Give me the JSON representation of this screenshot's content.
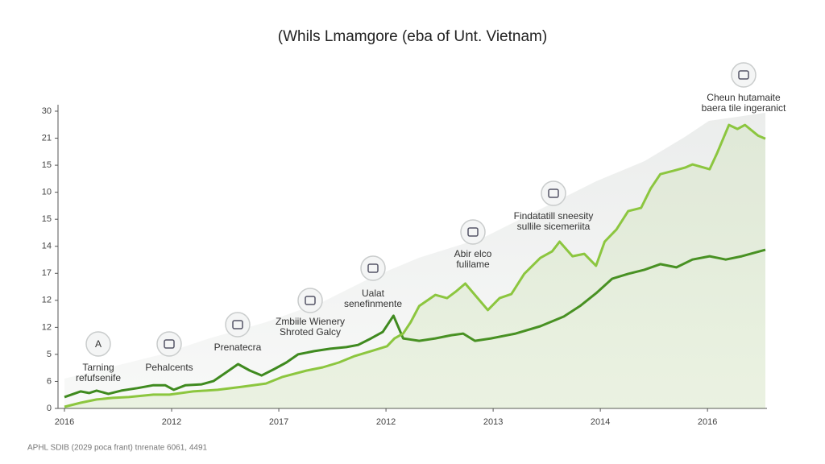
{
  "chart_data": {
    "type": "line",
    "title": "(Whils Lmamgore (eba of Unt. Vietnam)",
    "footer": "APHL SDIB (2029 poca frant) tnrenate 6061, 4491",
    "xlim": [
      0,
      6.54
    ],
    "ylim": [
      0,
      11
    ],
    "xticks": [
      {
        "value": 0,
        "label": "2016"
      },
      {
        "value": 1,
        "label": "2012"
      },
      {
        "value": 2,
        "label": "2017"
      },
      {
        "value": 3,
        "label": "2012"
      },
      {
        "value": 4,
        "label": "2013"
      },
      {
        "value": 5,
        "label": "2014"
      },
      {
        "value": 6,
        "label": "2016"
      }
    ],
    "yticks": [
      0,
      {
        "value": 1,
        "label": "6"
      },
      {
        "value": 2,
        "label": "5"
      },
      {
        "value": 3,
        "label": "12"
      },
      {
        "value": 4,
        "label": "12"
      },
      {
        "value": 5,
        "label": "17"
      },
      {
        "value": 6,
        "label": "14"
      },
      {
        "value": 7,
        "label": "15"
      },
      {
        "value": 8,
        "label": "10"
      },
      {
        "value": 9,
        "label": "15"
      },
      {
        "value": 10,
        "label": "21"
      },
      {
        "value": 11,
        "label": "30"
      }
    ],
    "grid": false,
    "series": [
      {
        "color": "#3f8a1f",
        "width": 3,
        "x": [
          0,
          0.15,
          0.23,
          0.3,
          0.41,
          0.53,
          0.68,
          0.83,
          0.94,
          1.02,
          1.13,
          1.28,
          1.39,
          1.5,
          1.62,
          1.73,
          1.84,
          1.96,
          2.07,
          2.18,
          2.33,
          2.48,
          2.63,
          2.74,
          2.86,
          2.97,
          3.07,
          3.16,
          3.31,
          3.46,
          3.61,
          3.72,
          3.83,
          3.98,
          4.21,
          4.44,
          4.66,
          4.81,
          4.96,
          5.11,
          5.26,
          5.41,
          5.56,
          5.71,
          5.86,
          6.02,
          6.17,
          6.32,
          6.54
        ],
        "values": [
          0.42,
          0.63,
          0.57,
          0.66,
          0.54,
          0.66,
          0.75,
          0.86,
          0.86,
          0.69,
          0.86,
          0.89,
          1.01,
          1.31,
          1.64,
          1.4,
          1.22,
          1.46,
          1.7,
          2.0,
          2.12,
          2.21,
          2.27,
          2.35,
          2.59,
          2.83,
          3.43,
          2.59,
          2.5,
          2.59,
          2.71,
          2.77,
          2.5,
          2.59,
          2.77,
          3.04,
          3.4,
          3.79,
          4.26,
          4.8,
          4.98,
          5.13,
          5.34,
          5.22,
          5.51,
          5.63,
          5.51,
          5.63,
          5.87
        ]
      },
      {
        "color": "#8cc63f",
        "width": 3,
        "area": true,
        "x": [
          0,
          0.15,
          0.3,
          0.45,
          0.6,
          0.83,
          0.98,
          1.2,
          1.43,
          1.65,
          1.88,
          2.03,
          2.26,
          2.41,
          2.56,
          2.71,
          2.86,
          3.01,
          3.08,
          3.16,
          3.23,
          3.31,
          3.46,
          3.57,
          3.65,
          3.74,
          3.83,
          3.95,
          4.06,
          4.17,
          4.29,
          4.44,
          4.55,
          4.62,
          4.74,
          4.85,
          4.96,
          5.04,
          5.15,
          5.26,
          5.38,
          5.47,
          5.56,
          5.68,
          5.79,
          5.86,
          6.02,
          6.09,
          6.2,
          6.28,
          6.35,
          6.47,
          6.54
        ],
        "values": [
          0.06,
          0.21,
          0.33,
          0.39,
          0.42,
          0.51,
          0.51,
          0.63,
          0.69,
          0.8,
          0.92,
          1.16,
          1.4,
          1.52,
          1.7,
          1.94,
          2.12,
          2.3,
          2.59,
          2.77,
          3.19,
          3.79,
          4.2,
          4.08,
          4.32,
          4.62,
          4.2,
          3.64,
          4.08,
          4.23,
          4.98,
          5.57,
          5.81,
          6.17,
          5.63,
          5.72,
          5.28,
          6.17,
          6.62,
          7.3,
          7.42,
          8.14,
          8.67,
          8.79,
          8.91,
          9.03,
          8.85,
          9.45,
          10.49,
          10.34,
          10.49,
          10.1,
          9.98
        ]
      }
    ],
    "annotations": [
      {
        "icon": "A",
        "text": [
          "Tarning",
          "refufsenife"
        ]
      },
      {
        "text": [
          "Pehalcents"
        ]
      },
      {
        "text": [
          "Prenatecra"
        ]
      },
      {
        "text": [
          "Zmbiile Wienery",
          "Shroted Galcy"
        ]
      },
      {
        "text": [
          "Ualat",
          "senefinmente"
        ]
      },
      {
        "text": [
          "Abir elco",
          "fulilame"
        ]
      },
      {
        "text": [
          "Findatatill sneesity",
          "sullile sicemeriita"
        ]
      },
      {
        "text": [
          "Cheun hutamaite",
          "baera tile ingeranict"
        ]
      }
    ]
  }
}
